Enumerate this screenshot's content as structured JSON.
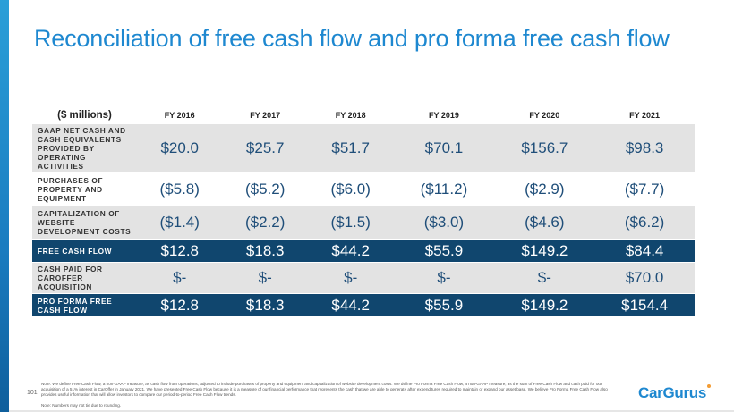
{
  "title": "Reconciliation of free cash flow and pro forma free cash flow",
  "table": {
    "unit_header": "($ millions)",
    "years": [
      "FY 2016",
      "FY 2017",
      "FY 2018",
      "FY 2019",
      "FY 2020",
      "FY 2021"
    ],
    "rows": [
      {
        "label": "GAAP NET CASH AND CASH EQUIVALENTS PROVIDED BY OPERATING ACTIVITIES",
        "values": [
          "$20.0",
          "$25.7",
          "$51.7",
          "$70.1",
          "$156.7",
          "$98.3"
        ]
      },
      {
        "label": "PURCHASES OF PROPERTY AND EQUIPMENT",
        "values": [
          "($5.8)",
          "($5.2)",
          "($6.0)",
          "($11.2)",
          "($2.9)",
          "($7.7)"
        ]
      },
      {
        "label": "CAPITALIZATION OF WEBSITE DEVELOPMENT COSTS",
        "values": [
          "($1.4)",
          "($2.2)",
          "($1.5)",
          "($3.0)",
          "($4.6)",
          "($6.2)"
        ]
      },
      {
        "label": "FREE CASH FLOW",
        "values": [
          "$12.8",
          "$18.3",
          "$44.2",
          "$55.9",
          "$149.2",
          "$84.4"
        ]
      },
      {
        "label": "CASH PAID FOR CAROFFER ACQUISITION",
        "values": [
          "$-",
          "$-",
          "$-",
          "$-",
          "$-",
          "$70.0"
        ]
      },
      {
        "label": "PRO FORMA FREE CASH FLOW",
        "values": [
          "$12.8",
          "$18.3",
          "$44.2",
          "$55.9",
          "$149.2",
          "$154.4"
        ]
      }
    ]
  },
  "footer": {
    "page_number": "101",
    "note": "Note: We define Free Cash Flow, a non-GAAP measure, as cash flow from operations, adjusted to include purchases of property and equipment and capitalization of website development costs. We define Pro Forma Free Cash Flow, a non-GAAP measure, as the sum of Free Cash Flow and cash paid for our acquisition of a 51% interest in CarOffer in January 2021. We have presented Free Cash Flow because it is a measure of our financial performance that represents the cash that we are able to generate after expenditures required to maintain or expand our asset base. We believe Pro Forma Free Cash Flow also provides useful information that will allow investors to compare our period-to-period Free Cash Flow trends.",
    "note2": "Note: Numbers may not tie due to rounding.",
    "logo": "CarGurus"
  }
}
